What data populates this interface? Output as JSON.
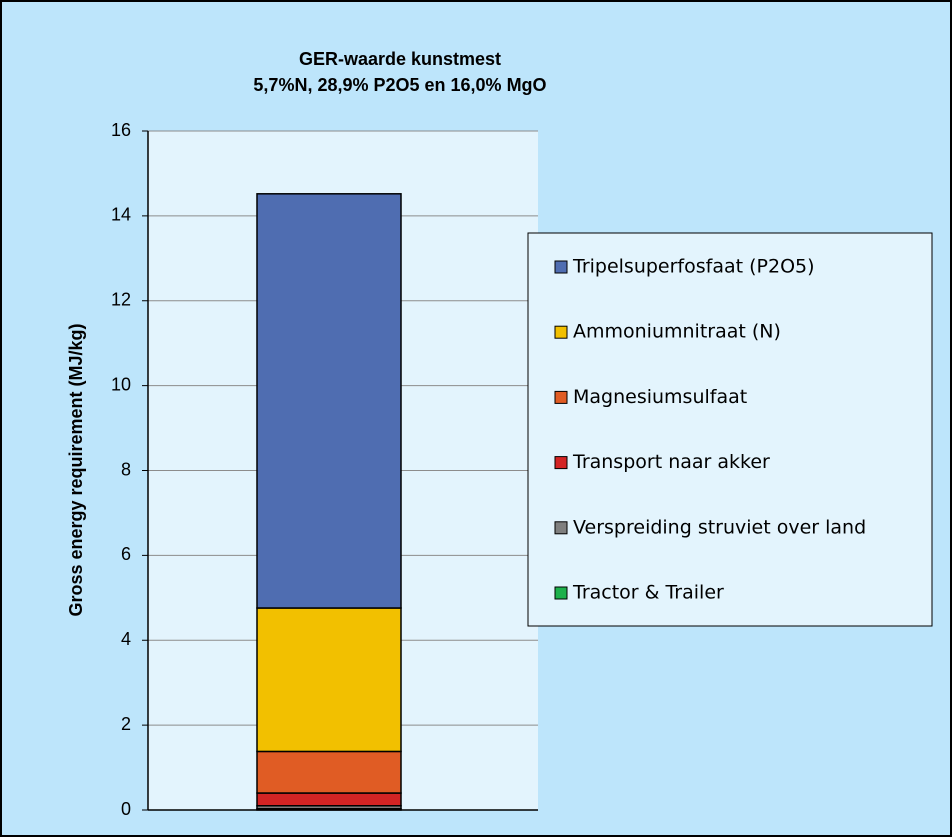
{
  "chart_data": {
    "type": "stacked_bar",
    "title": "GER-waarde kunstmest",
    "subtitle": "5,7%N, 28,9% P2O5 en 16,0% MgO",
    "y_label": "Gross energy requirement (MJ/kg)",
    "categories": [
      null
    ],
    "series": [
      {
        "name": "Tripelsuperfosfaat (P2O5)",
        "color": "#4f6db1",
        "values": [
          9.76
        ]
      },
      {
        "name": "Ammoniumnitraat (N)",
        "color": "#f2c000",
        "values": [
          3.38
        ]
      },
      {
        "name": "Magnesiumsulfaat",
        "color": "#e05c24",
        "values": [
          0.98
        ]
      },
      {
        "name": "Transport naar akker",
        "color": "#d32424",
        "values": [
          0.3
        ]
      },
      {
        "name": "Verspreiding struviet over land",
        "color": "#7f7f7f",
        "values": [
          0.07
        ]
      },
      {
        "name": "Tractor & Trailer",
        "color": "#1db04b",
        "values": [
          0.03
        ]
      }
    ],
    "ylim": [
      0,
      16
    ],
    "yticks": [
      0,
      2,
      4,
      6,
      8,
      10,
      12,
      14,
      16
    ],
    "grid": true,
    "legend": "right"
  }
}
